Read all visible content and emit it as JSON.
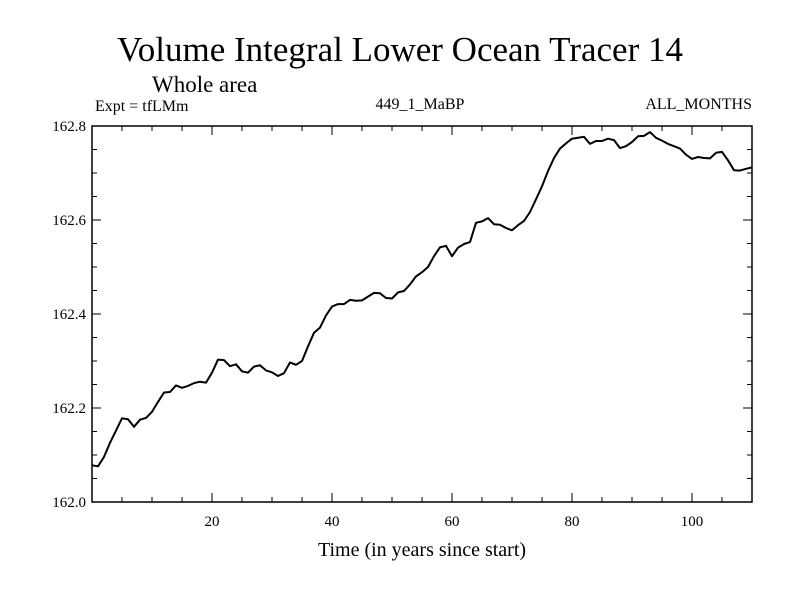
{
  "header": {
    "title": "Volume Integral Lower Ocean Tracer 14",
    "subtitle": "Whole area",
    "expt": "Expt = tfLMm",
    "run": "449_1_MaBP",
    "months": "ALL_MONTHS"
  },
  "chart_data": {
    "type": "line",
    "title": "Volume Integral Lower Ocean Tracer 14",
    "xlabel": "Time (in years since start)",
    "ylabel": "",
    "xlim": [
      0,
      110
    ],
    "ylim": [
      162.0,
      162.8
    ],
    "x_ticks": [
      20,
      40,
      60,
      80,
      100
    ],
    "x_tick_labels": [
      "20",
      "40",
      "60",
      "80",
      "100"
    ],
    "y_ticks": [
      162.0,
      162.2,
      162.4,
      162.6,
      162.8
    ],
    "y_tick_labels": [
      "162.0",
      "162.2",
      "162.4",
      "162.6",
      "162.8"
    ],
    "series": [
      {
        "name": "Tracer 14",
        "color": "#000000",
        "x": [
          0,
          1,
          2,
          3,
          4,
          5,
          6,
          7,
          8,
          9,
          10,
          11,
          12,
          13,
          14,
          15,
          16,
          17,
          18,
          19,
          20,
          21,
          22,
          23,
          24,
          25,
          26,
          27,
          28,
          29,
          30,
          31,
          32,
          33,
          34,
          35,
          36,
          37,
          38,
          39,
          40,
          41,
          42,
          43,
          44,
          45,
          46,
          47,
          48,
          49,
          50,
          51,
          52,
          53,
          54,
          55,
          56,
          57,
          58,
          59,
          60,
          61,
          62,
          63,
          64,
          65,
          66,
          67,
          68,
          69,
          70,
          71,
          72,
          73,
          74,
          75,
          76,
          77,
          78,
          79,
          80,
          81,
          82,
          83,
          84,
          85,
          86,
          87,
          88,
          89,
          90,
          91,
          92,
          93,
          94,
          95,
          96,
          97,
          98,
          99,
          100,
          101,
          102,
          103,
          104,
          105,
          106,
          107,
          108,
          109,
          110
        ],
        "values": [
          162.078,
          162.076,
          162.096,
          162.126,
          162.152,
          162.178,
          162.176,
          162.16,
          162.175,
          162.179,
          162.192,
          162.213,
          162.233,
          162.234,
          162.248,
          162.243,
          162.247,
          162.253,
          162.256,
          162.254,
          162.275,
          162.303,
          162.302,
          162.289,
          162.293,
          162.278,
          162.275,
          162.288,
          162.291,
          162.28,
          162.276,
          162.268,
          162.274,
          162.297,
          162.292,
          162.3,
          162.331,
          162.36,
          162.371,
          162.397,
          162.416,
          162.421,
          162.421,
          162.43,
          162.428,
          162.429,
          162.437,
          162.445,
          162.444,
          162.434,
          162.433,
          162.446,
          162.449,
          162.463,
          162.48,
          162.489,
          162.5,
          162.523,
          162.542,
          162.545,
          162.523,
          162.541,
          162.549,
          162.553,
          162.594,
          162.597,
          162.604,
          162.591,
          162.59,
          162.583,
          162.578,
          162.589,
          162.598,
          162.617,
          162.644,
          162.672,
          162.704,
          162.732,
          162.752,
          162.763,
          162.773,
          162.775,
          162.777,
          162.762,
          162.768,
          162.768,
          162.773,
          162.77,
          162.753,
          162.757,
          162.766,
          162.778,
          162.779,
          162.787,
          162.775,
          162.769,
          162.762,
          162.757,
          162.752,
          162.739,
          162.73,
          162.734,
          162.732,
          162.731,
          162.743,
          162.745,
          162.727,
          162.706,
          162.705,
          162.709,
          162.712
        ]
      }
    ]
  }
}
